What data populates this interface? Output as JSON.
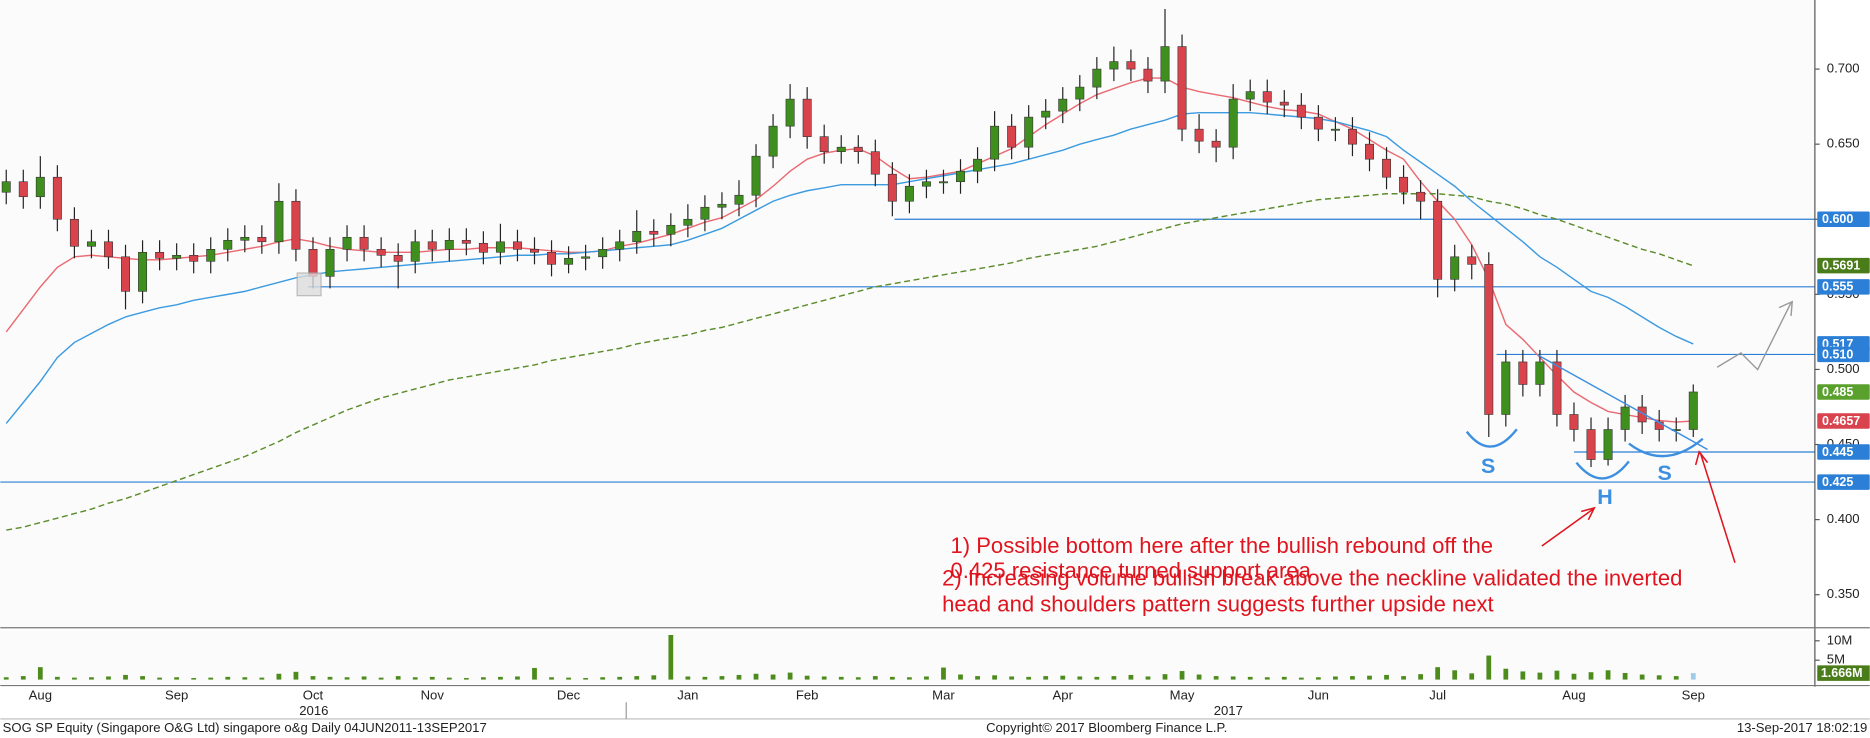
{
  "chart_data": {
    "type": "candlestick",
    "categories": [
      null,
      null,
      "Aug",
      null,
      null,
      null,
      null,
      null,
      null,
      null,
      "Sep",
      null,
      null,
      null,
      null,
      null,
      null,
      null,
      "Oct",
      null,
      null,
      null,
      null,
      null,
      null,
      "Nov",
      null,
      null,
      null,
      null,
      null,
      null,
      null,
      "Dec",
      null,
      null,
      null,
      null,
      null,
      null,
      "Jan",
      null,
      null,
      null,
      null,
      null,
      null,
      "Feb",
      null,
      null,
      null,
      null,
      null,
      null,
      null,
      "Mar",
      null,
      null,
      null,
      null,
      null,
      null,
      "Apr",
      null,
      null,
      null,
      null,
      null,
      null,
      "May",
      null,
      null,
      null,
      null,
      null,
      null,
      null,
      "Jun",
      null,
      null,
      null,
      null,
      null,
      null,
      "Jul",
      null,
      null,
      null,
      null,
      null,
      null,
      null,
      "Aug",
      null,
      null,
      null,
      null,
      null,
      null,
      "Sep"
    ],
    "year_labels": [
      "2016",
      "2017"
    ],
    "open": [
      0.618,
      0.625,
      0.615,
      0.628,
      0.6,
      0.582,
      0.585,
      0.575,
      0.552,
      0.578,
      0.574,
      0.576,
      0.572,
      0.58,
      0.586,
      0.588,
      0.585,
      0.612,
      0.58,
      0.562,
      0.58,
      0.588,
      0.58,
      0.576,
      0.572,
      0.585,
      0.58,
      0.586,
      0.584,
      0.578,
      0.585,
      0.58,
      0.578,
      0.57,
      0.574,
      0.575,
      0.58,
      0.585,
      0.592,
      0.59,
      0.596,
      0.6,
      0.608,
      0.61,
      0.616,
      0.642,
      0.662,
      0.68,
      0.655,
      0.645,
      0.648,
      0.645,
      0.63,
      0.612,
      0.622,
      0.625,
      0.625,
      0.632,
      0.64,
      0.662,
      0.648,
      0.668,
      0.672,
      0.68,
      0.688,
      0.7,
      0.705,
      0.7,
      0.692,
      0.715,
      0.66,
      0.652,
      0.648,
      0.68,
      0.685,
      0.678,
      0.676,
      0.668,
      0.66,
      0.66,
      0.65,
      0.64,
      0.628,
      0.618,
      0.612,
      0.56,
      0.575,
      0.57,
      0.47,
      0.505,
      0.49,
      0.505,
      0.47,
      0.46,
      0.44,
      0.46,
      0.475,
      0.465,
      0.46,
      0.46
    ],
    "high": [
      0.633,
      0.633,
      0.642,
      0.636,
      0.608,
      0.593,
      0.593,
      0.583,
      0.586,
      0.586,
      0.584,
      0.584,
      0.588,
      0.594,
      0.596,
      0.596,
      0.624,
      0.62,
      0.588,
      0.588,
      0.596,
      0.596,
      0.588,
      0.584,
      0.593,
      0.593,
      0.594,
      0.594,
      0.592,
      0.597,
      0.593,
      0.588,
      0.586,
      0.582,
      0.583,
      0.588,
      0.593,
      0.606,
      0.6,
      0.604,
      0.61,
      0.616,
      0.618,
      0.626,
      0.65,
      0.67,
      0.69,
      0.688,
      0.663,
      0.656,
      0.656,
      0.653,
      0.638,
      0.63,
      0.633,
      0.633,
      0.64,
      0.648,
      0.672,
      0.67,
      0.676,
      0.68,
      0.688,
      0.696,
      0.708,
      0.715,
      0.713,
      0.708,
      0.74,
      0.723,
      0.67,
      0.66,
      0.69,
      0.693,
      0.693,
      0.686,
      0.684,
      0.676,
      0.668,
      0.668,
      0.658,
      0.648,
      0.636,
      0.626,
      0.62,
      0.583,
      0.583,
      0.578,
      0.513,
      0.513,
      0.513,
      0.513,
      0.478,
      0.468,
      0.468,
      0.483,
      0.483,
      0.473,
      0.468,
      0.49
    ],
    "low": [
      0.61,
      0.607,
      0.607,
      0.592,
      0.574,
      0.574,
      0.567,
      0.54,
      0.544,
      0.566,
      0.566,
      0.564,
      0.564,
      0.572,
      0.578,
      0.577,
      0.577,
      0.572,
      0.554,
      0.554,
      0.572,
      0.572,
      0.568,
      0.554,
      0.564,
      0.572,
      0.572,
      0.576,
      0.57,
      0.57,
      0.572,
      0.57,
      0.562,
      0.564,
      0.566,
      0.567,
      0.572,
      0.577,
      0.582,
      0.582,
      0.588,
      0.592,
      0.6,
      0.602,
      0.608,
      0.634,
      0.654,
      0.647,
      0.637,
      0.637,
      0.637,
      0.622,
      0.602,
      0.604,
      0.614,
      0.617,
      0.617,
      0.624,
      0.632,
      0.64,
      0.64,
      0.66,
      0.664,
      0.672,
      0.68,
      0.692,
      0.692,
      0.684,
      0.684,
      0.652,
      0.644,
      0.638,
      0.64,
      0.672,
      0.67,
      0.668,
      0.66,
      0.652,
      0.652,
      0.642,
      0.632,
      0.62,
      0.61,
      0.6,
      0.548,
      0.552,
      0.56,
      0.455,
      0.462,
      0.482,
      0.482,
      0.462,
      0.452,
      0.435,
      0.436,
      0.452,
      0.457,
      0.452,
      0.452,
      0.455
    ],
    "close": [
      0.625,
      0.615,
      0.628,
      0.6,
      0.582,
      0.585,
      0.575,
      0.552,
      0.578,
      0.574,
      0.576,
      0.572,
      0.58,
      0.586,
      0.588,
      0.585,
      0.612,
      0.58,
      0.562,
      0.58,
      0.588,
      0.58,
      0.576,
      0.572,
      0.585,
      0.58,
      0.586,
      0.584,
      0.578,
      0.585,
      0.58,
      0.578,
      0.57,
      0.574,
      0.575,
      0.58,
      0.585,
      0.592,
      0.59,
      0.596,
      0.6,
      0.608,
      0.61,
      0.616,
      0.642,
      0.662,
      0.68,
      0.655,
      0.645,
      0.648,
      0.645,
      0.63,
      0.612,
      0.622,
      0.625,
      0.625,
      0.632,
      0.64,
      0.662,
      0.648,
      0.668,
      0.672,
      0.68,
      0.688,
      0.7,
      0.705,
      0.7,
      0.692,
      0.715,
      0.66,
      0.652,
      0.648,
      0.68,
      0.685,
      0.678,
      0.676,
      0.668,
      0.66,
      0.66,
      0.65,
      0.64,
      0.628,
      0.618,
      0.612,
      0.56,
      0.575,
      0.57,
      0.47,
      0.505,
      0.49,
      0.505,
      0.47,
      0.46,
      0.44,
      0.46,
      0.475,
      0.465,
      0.46,
      0.46,
      0.485
    ],
    "up_color": "#3f8f1f",
    "down_color": "#d8434c",
    "wick_color": "#222222",
    "moving_averages": [
      {
        "color": "#ea6a72",
        "values": [
          0.525,
          0.54,
          0.555,
          0.568,
          0.575,
          0.576,
          0.575,
          0.574,
          0.573,
          0.573,
          0.574,
          0.575,
          0.576,
          0.578,
          0.58,
          0.582,
          0.585,
          0.587,
          0.585,
          0.582,
          0.58,
          0.579,
          0.578,
          0.578,
          0.578,
          0.579,
          0.58,
          0.58,
          0.581,
          0.581,
          0.581,
          0.58,
          0.579,
          0.578,
          0.578,
          0.579,
          0.582,
          0.584,
          0.587,
          0.59,
          0.594,
          0.598,
          0.601,
          0.607,
          0.613,
          0.622,
          0.632,
          0.64,
          0.644,
          0.646,
          0.647,
          0.642,
          0.634,
          0.627,
          0.628,
          0.63,
          0.632,
          0.637,
          0.642,
          0.647,
          0.655,
          0.663,
          0.67,
          0.677,
          0.683,
          0.687,
          0.691,
          0.694,
          0.694,
          0.688,
          0.685,
          0.683,
          0.681,
          0.678,
          0.675,
          0.673,
          0.672,
          0.67,
          0.665,
          0.66,
          0.653,
          0.646,
          0.64,
          0.625,
          0.612,
          0.6,
          0.583,
          0.56,
          0.53,
          0.52,
          0.508,
          0.496,
          0.485,
          0.478,
          0.472,
          0.47,
          0.468,
          0.466,
          0.465,
          0.4657
        ]
      },
      {
        "color": "#3d9be0",
        "values": [
          0.464,
          0.478,
          0.492,
          0.508,
          0.518,
          0.524,
          0.53,
          0.535,
          0.538,
          0.541,
          0.543,
          0.546,
          0.548,
          0.55,
          0.552,
          0.555,
          0.558,
          0.561,
          0.563,
          0.565,
          0.566,
          0.567,
          0.568,
          0.569,
          0.57,
          0.571,
          0.572,
          0.573,
          0.574,
          0.575,
          0.576,
          0.576,
          0.577,
          0.577,
          0.578,
          0.579,
          0.58,
          0.581,
          0.582,
          0.583,
          0.586,
          0.59,
          0.594,
          0.6,
          0.606,
          0.612,
          0.616,
          0.619,
          0.621,
          0.623,
          0.623,
          0.623,
          0.623,
          0.625,
          0.627,
          0.629,
          0.631,
          0.633,
          0.635,
          0.637,
          0.64,
          0.643,
          0.646,
          0.65,
          0.653,
          0.656,
          0.66,
          0.663,
          0.666,
          0.67,
          0.671,
          0.671,
          0.671,
          0.671,
          0.67,
          0.669,
          0.668,
          0.667,
          0.665,
          0.662,
          0.659,
          0.655,
          0.646,
          0.638,
          0.63,
          0.622,
          0.612,
          0.603,
          0.594,
          0.585,
          0.575,
          0.568,
          0.56,
          0.552,
          0.548,
          0.542,
          0.535,
          0.528,
          0.522,
          0.517
        ]
      },
      {
        "color": "#5b8c2a",
        "dashed": true,
        "values": [
          0.393,
          0.395,
          0.398,
          0.401,
          0.404,
          0.407,
          0.411,
          0.414,
          0.418,
          0.422,
          0.426,
          0.43,
          0.434,
          0.438,
          0.442,
          0.447,
          0.452,
          0.458,
          0.463,
          0.468,
          0.473,
          0.477,
          0.481,
          0.484,
          0.487,
          0.49,
          0.493,
          0.495,
          0.497,
          0.499,
          0.501,
          0.503,
          0.506,
          0.508,
          0.51,
          0.512,
          0.514,
          0.517,
          0.519,
          0.521,
          0.523,
          0.526,
          0.528,
          0.531,
          0.534,
          0.537,
          0.54,
          0.543,
          0.546,
          0.549,
          0.552,
          0.555,
          0.557,
          0.559,
          0.561,
          0.563,
          0.565,
          0.567,
          0.569,
          0.571,
          0.574,
          0.576,
          0.578,
          0.58,
          0.582,
          0.585,
          0.588,
          0.591,
          0.594,
          0.597,
          0.599,
          0.601,
          0.603,
          0.605,
          0.607,
          0.609,
          0.611,
          0.613,
          0.614,
          0.615,
          0.616,
          0.617,
          0.617,
          0.617,
          0.617,
          0.616,
          0.615,
          0.612,
          0.61,
          0.607,
          0.603,
          0.6,
          0.596,
          0.592,
          0.588,
          0.584,
          0.58,
          0.577,
          0.573,
          0.569
        ]
      }
    ],
    "ylim": [
      0.33,
      0.746
    ],
    "yticks": [
      {
        "value": 0.35,
        "label": "0.350"
      },
      {
        "value": 0.4,
        "label": "0.400"
      },
      {
        "value": 0.45,
        "label": "0.450"
      },
      {
        "value": 0.5,
        "label": "0.500"
      },
      {
        "value": 0.55,
        "label": "0.550"
      },
      {
        "value": 0.6,
        "label": "0.600"
      },
      {
        "value": 0.65,
        "label": "0.650"
      },
      {
        "value": 0.7,
        "label": "0.700"
      }
    ],
    "levels": [
      {
        "value": 0.6,
        "label": "0.600",
        "color": "#2b7fd6"
      },
      {
        "value": 0.555,
        "label": "0.555",
        "color": "#2b7fd6"
      },
      {
        "value": 0.51,
        "label": "0.510",
        "color": "#2b7fd6"
      },
      {
        "value": 0.445,
        "label": "0.445",
        "color": "#2b7fd6"
      },
      {
        "value": 0.425,
        "label": "0.425",
        "color": "#2b7fd6"
      }
    ],
    "tags": [
      {
        "value": 0.5691,
        "label": "0.5691",
        "color": "#4a7c1a"
      },
      {
        "value": 0.517,
        "label": "0.517",
        "color": "#2b7fd6"
      },
      {
        "value": 0.485,
        "label": "0.485",
        "color": "#5aa02c"
      },
      {
        "value": 0.4657,
        "label": "0.4657",
        "color": "#d9434e"
      }
    ],
    "volume": {
      "values": [
        600000,
        900000,
        3200000,
        700000,
        500000,
        600000,
        800000,
        1200000,
        900000,
        500000,
        600000,
        400000,
        500000,
        700000,
        600000,
        500000,
        1500000,
        2000000,
        900000,
        700000,
        600000,
        800000,
        500000,
        900000,
        600000,
        700000,
        500000,
        400000,
        600000,
        700000,
        800000,
        3000000,
        600000,
        500000,
        400000,
        600000,
        700000,
        900000,
        1100000,
        11500000,
        800000,
        700000,
        900000,
        1200000,
        1500000,
        1300000,
        1800000,
        1000000,
        800000,
        700000,
        600000,
        900000,
        700000,
        600000,
        800000,
        3100000,
        1300000,
        900000,
        1100000,
        800000,
        700000,
        900000,
        1000000,
        800000,
        700000,
        900000,
        1200000,
        800000,
        1400000,
        2200000,
        1300000,
        900000,
        800000,
        700000,
        600000,
        700000,
        500000,
        600000,
        800000,
        900000,
        1000000,
        1200000,
        900000,
        1400000,
        3200000,
        2400000,
        1600000,
        6200000,
        2800000,
        2100000,
        1800000,
        2300000,
        1500000,
        1900000,
        2400000,
        1700000,
        1300000,
        1100000,
        900000,
        1666000
      ],
      "color": "#4d8c1c",
      "last_color": "#9ecbe8",
      "ylim": [
        0,
        12300000
      ],
      "yticks": [
        {
          "value": 5000000,
          "label": "5M"
        },
        {
          "value": 10000000,
          "label": "10M"
        }
      ],
      "tag": {
        "value": 1666000,
        "label": "1.666M",
        "color": "#4a7c1a"
      }
    },
    "pattern_labels": [
      "S",
      "H",
      "S"
    ],
    "notes": [
      "1) Possible bottom here after the bullish rebound off the",
      "0.425 resistance turned support area",
      "2) Increasing volume bullish break above the neckline validated the inverted",
      "head and shoulders pattern suggests further upside next"
    ]
  },
  "footer": {
    "left": "SOG SP Equity (Singapore O&G Ltd) singapore o&g  Daily 04JUN2011-13SEP2017",
    "center": "Copyright© 2017 Bloomberg Finance L.P.",
    "right": "13-Sep-2017 18:02:19"
  }
}
